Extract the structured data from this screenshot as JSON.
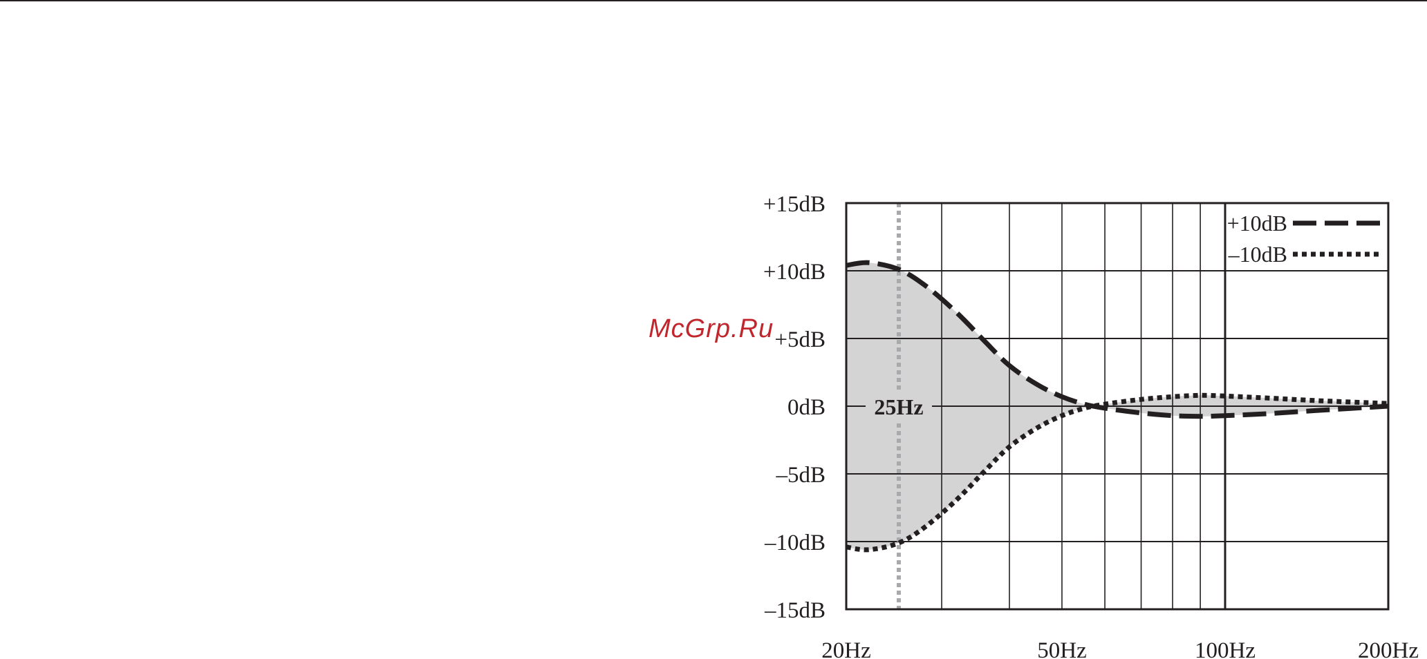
{
  "watermark": "McGrp.Ru",
  "colors": {
    "ink": "#231f20",
    "fill": "#d4d4d4",
    "marker": "#a7a9ac",
    "watermark": "#c0262c"
  },
  "chart_data": {
    "type": "line",
    "title": "",
    "xlabel": "",
    "ylabel": "",
    "x_scale": "log",
    "xlim": [
      20,
      200
    ],
    "ylim": [
      -15,
      15
    ],
    "grid": true,
    "legend_position": "top-right",
    "x_tick_labels": [
      {
        "value": 20,
        "label": "20Hz"
      },
      {
        "value": 50,
        "label": "50Hz"
      },
      {
        "value": 100,
        "label": "100Hz"
      },
      {
        "value": 200,
        "label": "200Hz"
      }
    ],
    "x_gridlines": [
      30,
      40,
      50,
      60,
      70,
      80,
      90,
      100
    ],
    "y_tick_labels": [
      {
        "value": 15,
        "label": "+15dB"
      },
      {
        "value": 10,
        "label": "+10dB"
      },
      {
        "value": 5,
        "label": "+5dB"
      },
      {
        "value": 0,
        "label": "0dB"
      },
      {
        "value": -5,
        "label": "–5dB"
      },
      {
        "value": -10,
        "label": "–10dB"
      },
      {
        "value": -15,
        "label": "–15dB"
      }
    ],
    "marker": {
      "x": 25,
      "label": "25Hz"
    },
    "series": [
      {
        "name": "+10dB",
        "style": "dashed",
        "x": [
          20,
          22,
          25,
          28,
          32,
          36,
          40,
          45,
          50,
          55,
          60,
          70,
          80,
          90,
          100,
          120,
          150,
          200
        ],
        "y": [
          10.4,
          10.6,
          10.1,
          8.9,
          6.9,
          4.8,
          3.0,
          1.6,
          0.7,
          0.15,
          -0.15,
          -0.5,
          -0.7,
          -0.75,
          -0.7,
          -0.55,
          -0.3,
          0.0
        ]
      },
      {
        "name": "–10dB",
        "style": "dotted",
        "x": [
          20,
          22,
          25,
          28,
          32,
          36,
          40,
          45,
          50,
          55,
          60,
          70,
          80,
          90,
          100,
          120,
          150,
          200
        ],
        "y": [
          -10.4,
          -10.6,
          -10.1,
          -8.9,
          -6.9,
          -4.8,
          -3.0,
          -1.6,
          -0.7,
          -0.15,
          0.15,
          0.5,
          0.7,
          0.8,
          0.75,
          0.6,
          0.4,
          0.2
        ]
      }
    ]
  }
}
